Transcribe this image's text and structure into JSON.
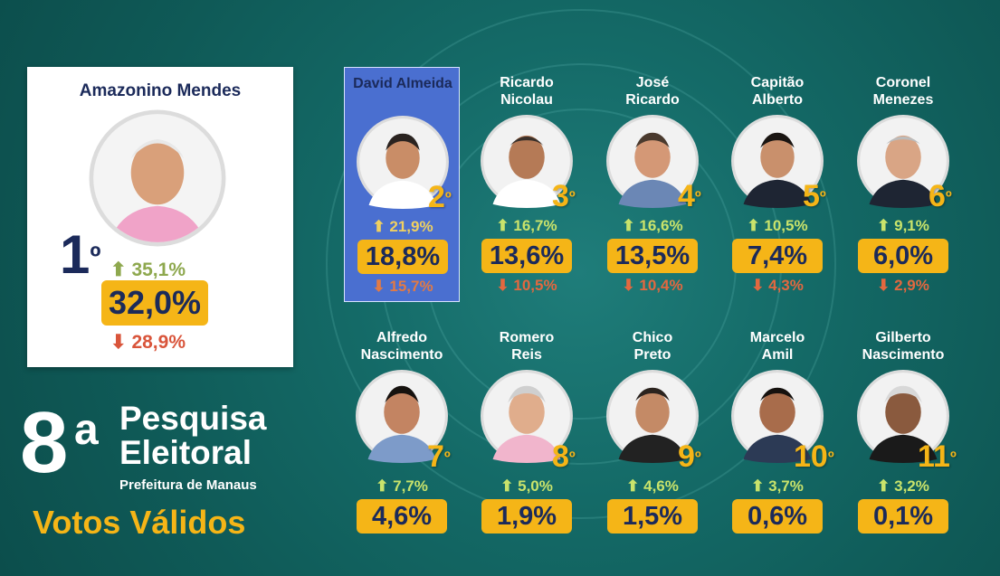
{
  "title": {
    "number": "8",
    "ordinal": "a",
    "line1": "Pesquisa",
    "line2": "Eleitoral",
    "subtitle": "Prefeitura de Manaus",
    "votes_label": "Votos Válidos"
  },
  "leader": {
    "name": "Amazonino Mendes",
    "rank_num": "1",
    "rank_ord": "º",
    "up": "35,1%",
    "pct": "32,0%",
    "down": "28,9%"
  },
  "candidates": [
    {
      "name": "David Almeida",
      "rank_num": "2",
      "rank_ord": "º",
      "up": "21,9%",
      "pct": "18,8%",
      "down": "15,7%"
    },
    {
      "name": "Ricardo Nicolau",
      "rank_num": "3",
      "rank_ord": "º",
      "up": "16,7%",
      "pct": "13,6%",
      "down": "10,5%"
    },
    {
      "name": "José Ricardo",
      "rank_num": "4",
      "rank_ord": "º",
      "up": "16,6%",
      "pct": "13,5%",
      "down": "10,4%"
    },
    {
      "name": "Capitão Alberto",
      "rank_num": "5",
      "rank_ord": "º",
      "up": "10,5%",
      "pct": "7,4%",
      "down": "4,3%"
    },
    {
      "name": "Coronel Menezes",
      "rank_num": "6",
      "rank_ord": "º",
      "up": "9,1%",
      "pct": "6,0%",
      "down": "2,9%"
    },
    {
      "name": "Alfredo Nascimento",
      "rank_num": "7",
      "rank_ord": "º",
      "up": "7,7%",
      "pct": "4,6%"
    },
    {
      "name": "Romero Reis",
      "rank_num": "8",
      "rank_ord": "º",
      "up": "5,0%",
      "pct": "1,9%"
    },
    {
      "name": "Chico Preto",
      "rank_num": "9",
      "rank_ord": "º",
      "up": "4,6%",
      "pct": "1,5%"
    },
    {
      "name": "Marcelo Amil",
      "rank_num": "10",
      "rank_ord": "º",
      "up": "3,7%",
      "pct": "0,6%"
    },
    {
      "name": "Gilberto Nascimento",
      "rank_num": "11",
      "rank_ord": "º",
      "up": "3,2%",
      "pct": "0,1%"
    }
  ],
  "colors": {
    "accent": "#f5b517",
    "navy": "#1b2a5a",
    "up_green": "#8ea84e",
    "down_red": "#d9553b",
    "highlight": "#4a6fd0",
    "background": "#146a67"
  }
}
